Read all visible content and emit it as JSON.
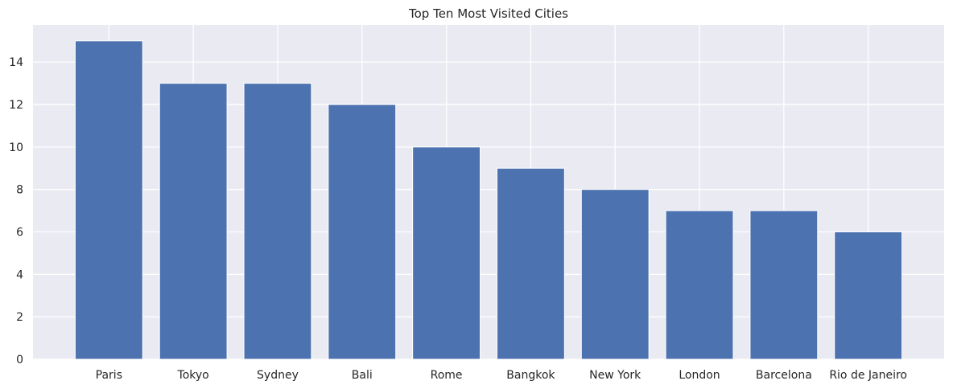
{
  "chart_data": {
    "type": "bar",
    "title": "Top Ten Most Visited Cities",
    "xlabel": "",
    "ylabel": "",
    "categories": [
      "Paris",
      "Tokyo",
      "Sydney",
      "Bali",
      "Rome",
      "Bangkok",
      "New York",
      "London",
      "Barcelona",
      "Rio de Janeiro"
    ],
    "values": [
      15,
      13,
      13,
      12,
      10,
      9,
      8,
      7,
      7,
      6
    ],
    "ylim": [
      0,
      15.75
    ],
    "yticks": [
      "0",
      "2",
      "4",
      "6",
      "8",
      "10",
      "12",
      "14"
    ],
    "grid": true,
    "bar_color": "#4c72b0",
    "background_color": "#eaeaf2",
    "grid_color": "#ffffff"
  }
}
